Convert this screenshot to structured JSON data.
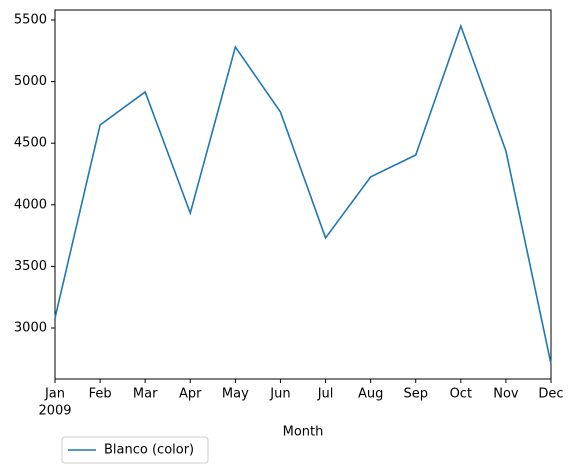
{
  "chart_data": {
    "type": "line",
    "categories": [
      "Jan",
      "Feb",
      "Mar",
      "Apr",
      "May",
      "Jun",
      "Jul",
      "Aug",
      "Sep",
      "Oct",
      "Nov",
      "Dec"
    ],
    "x_year_label": "2009",
    "xlabel": "Month",
    "series": [
      {
        "name": "Blanco (color)",
        "color": "#1f77b4",
        "values": [
          3081,
          4648,
          4916,
          3933,
          5281,
          4753,
          3731,
          4226,
          4404,
          5451,
          4437,
          2708
        ]
      }
    ],
    "ylim": [
      2586,
      5581
    ],
    "yticks": [
      3000,
      3500,
      4000,
      4500,
      5000,
      5500
    ],
    "legend": "lower left outside"
  }
}
